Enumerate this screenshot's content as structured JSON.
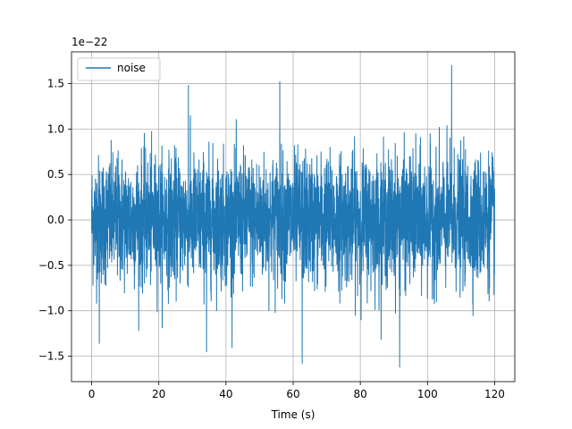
{
  "chart_data": {
    "type": "line",
    "title": "",
    "xlabel": "Time (s)",
    "ylabel": "",
    "y_scale_label": "1e−22",
    "x_range": [
      0,
      120
    ],
    "xlim": [
      -6,
      126
    ],
    "ylim": [
      -1.78e-22,
      1.85e-22
    ],
    "x_ticks": [
      0,
      20,
      40,
      60,
      80,
      100,
      120
    ],
    "x_tick_labels": [
      "0",
      "20",
      "40",
      "60",
      "80",
      "100",
      "120"
    ],
    "y_ticks": [
      -1.5e-22,
      -1e-22,
      -5e-23,
      0,
      5e-23,
      1e-22,
      1.5e-22
    ],
    "y_tick_labels": [
      "−1.5",
      "−1.0",
      "−0.5",
      "0.0",
      "0.5",
      "1.0",
      "1.5"
    ],
    "grid": true,
    "legend_position": "top-left",
    "series": [
      {
        "name": "noise",
        "color": "#1f77b4",
        "description": "Gaussian noise samples, roughly zero mean with standard deviation near 0.35e-22 and extremes near +1.7e-22 and -1.6e-22",
        "peaks": [
          {
            "x": 107.2,
            "y": 1.7e-22
          },
          {
            "x": 56.0,
            "y": 1.52e-22
          },
          {
            "x": 28.8,
            "y": 1.48e-22
          },
          {
            "x": 91.7,
            "y": -1.62e-22
          },
          {
            "x": 62.7,
            "y": -1.58e-22
          },
          {
            "x": 34.2,
            "y": -1.45e-22
          },
          {
            "x": 2.3,
            "y": -1.36e-22
          }
        ]
      }
    ]
  }
}
